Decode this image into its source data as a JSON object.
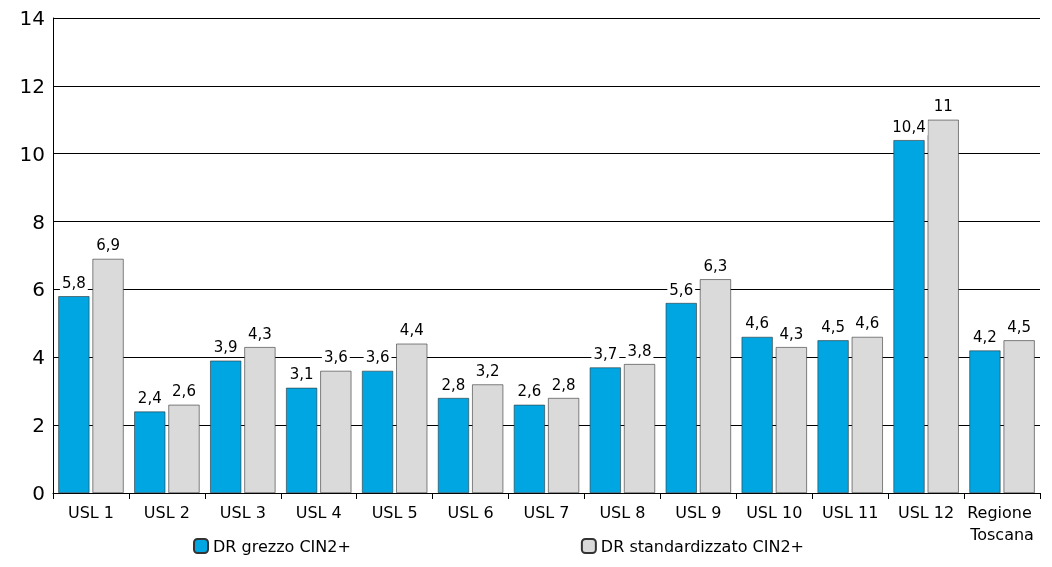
{
  "chart_data": {
    "type": "bar",
    "categories": [
      "USL 1",
      "USL 2",
      "USL 3",
      "USL 4",
      "USL 5",
      "USL 6",
      "USL 7",
      "USL 8",
      "USL 9",
      "USL 10",
      "USL 11",
      "USL 12",
      "Regione Toscana"
    ],
    "series": [
      {
        "name": "DR grezzo CIN2+",
        "color": "#00a6e2",
        "values": [
          5.8,
          2.4,
          3.9,
          3.1,
          3.6,
          2.8,
          2.6,
          3.7,
          5.6,
          4.6,
          4.5,
          10.4,
          4.2
        ],
        "value_labels": [
          "5,8",
          "2,4",
          "3,9",
          "3,1",
          "3,6",
          "2,8",
          "2,6",
          "3,7",
          "5,6",
          "4,6",
          "4,5",
          "10,4",
          "4,2"
        ]
      },
      {
        "name": "DR standardizzato CIN2+",
        "color": "#dadada",
        "values": [
          6.9,
          2.6,
          4.3,
          3.6,
          4.4,
          3.2,
          2.8,
          3.8,
          6.3,
          4.3,
          4.6,
          11,
          4.5
        ],
        "value_labels": [
          "6,9",
          "2,6",
          "4,3",
          "3,6",
          "4,4",
          "3,2",
          "2,8",
          "3,8",
          "6,3",
          "4,3",
          "4,6",
          "11",
          "4,5"
        ]
      }
    ],
    "ylim": [
      0,
      14
    ],
    "yticks": [
      0,
      2,
      4,
      6,
      8,
      10,
      12,
      14
    ],
    "grid": "y",
    "legend": "bottom"
  }
}
